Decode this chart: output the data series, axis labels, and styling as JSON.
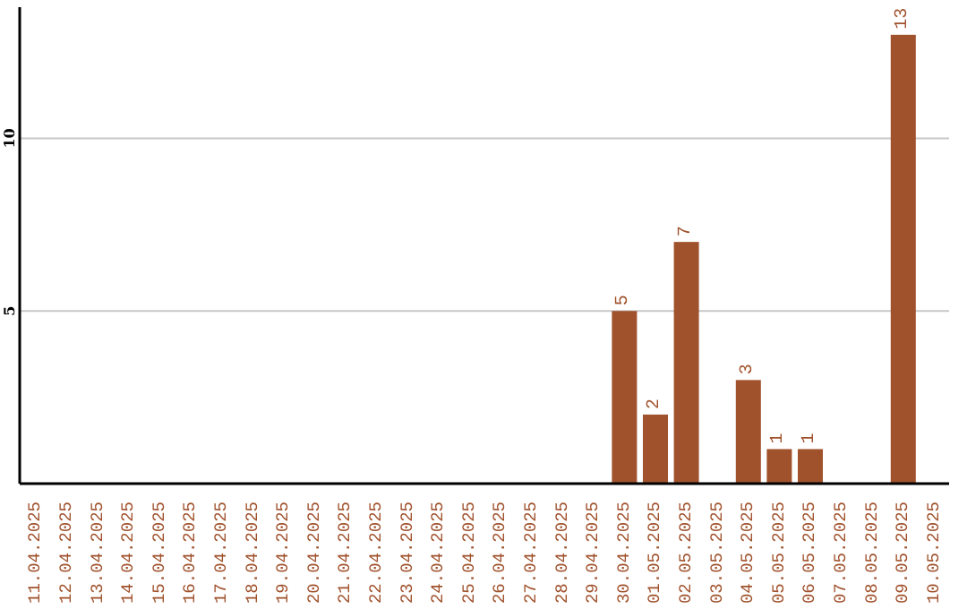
{
  "chart_data": {
    "type": "bar",
    "categories": [
      "11.04.2025",
      "12.04.2025",
      "13.04.2025",
      "14.04.2025",
      "15.04.2025",
      "16.04.2025",
      "17.04.2025",
      "18.04.2025",
      "19.04.2025",
      "20.04.2025",
      "21.04.2025",
      "22.04.2025",
      "23.04.2025",
      "24.04.2025",
      "25.04.2025",
      "26.04.2025",
      "27.04.2025",
      "28.04.2025",
      "29.04.2025",
      "30.04.2025",
      "01.05.2025",
      "02.05.2025",
      "03.05.2025",
      "04.05.2025",
      "05.05.2025",
      "06.05.2025",
      "07.05.2025",
      "08.05.2025",
      "09.05.2025",
      "10.05.2025"
    ],
    "values": [
      0,
      0,
      0,
      0,
      0,
      0,
      0,
      0,
      0,
      0,
      0,
      0,
      0,
      0,
      0,
      0,
      0,
      0,
      0,
      5,
      2,
      7,
      0,
      3,
      1,
      1,
      0,
      0,
      13,
      0
    ],
    "value_labels": [
      null,
      null,
      null,
      null,
      null,
      null,
      null,
      null,
      null,
      null,
      null,
      null,
      null,
      null,
      null,
      null,
      null,
      null,
      null,
      "5",
      "2",
      "7",
      null,
      "3",
      "1",
      "1",
      null,
      null,
      "13",
      null
    ],
    "color": "#a0522d",
    "ylim": [
      0,
      13.8
    ],
    "yticks": [
      5,
      10
    ],
    "grid": "y"
  }
}
